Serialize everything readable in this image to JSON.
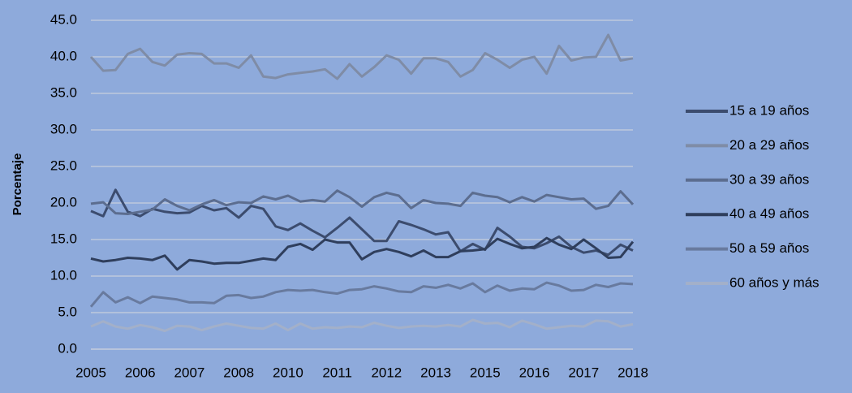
{
  "chart_data": {
    "type": "line",
    "y_label": "Porcentaje",
    "categories": [
      "2005",
      null,
      null,
      null,
      "2006",
      null,
      null,
      null,
      "2007",
      null,
      null,
      null,
      "2008",
      null,
      null,
      null,
      "2010",
      null,
      null,
      null,
      "2011",
      null,
      null,
      null,
      "2012",
      null,
      null,
      null,
      "2013",
      null,
      null,
      null,
      "2015",
      null,
      null,
      null,
      "2016",
      null,
      null,
      null,
      "2017",
      null,
      null,
      null,
      "2018"
    ],
    "ylim": [
      0,
      45
    ],
    "yticks": [
      {
        "value": 0,
        "label": "0.0"
      },
      {
        "value": 5,
        "label": "5.0"
      },
      {
        "value": 10,
        "label": "10.0"
      },
      {
        "value": 15,
        "label": "15.0"
      },
      {
        "value": 20,
        "label": "20.0"
      },
      {
        "value": 25,
        "label": "25.0"
      },
      {
        "value": 30,
        "label": "30.0"
      },
      {
        "value": 35,
        "label": "35.0"
      },
      {
        "value": 40,
        "label": "40.0"
      },
      {
        "value": 45,
        "label": "45.0"
      }
    ],
    "grid": true,
    "legend": "right",
    "series": [
      {
        "name": "15 a 19 años",
        "color": "#3c4c6e",
        "values": [
          18.9,
          18.2,
          21.8,
          18.8,
          18.2,
          19.2,
          18.8,
          18.6,
          18.7,
          19.6,
          19.0,
          19.3,
          18.0,
          19.6,
          19.2,
          16.8,
          16.3,
          17.2,
          16.2,
          15.3,
          16.6,
          18.0,
          16.4,
          14.8,
          14.8,
          17.5,
          17.0,
          16.4,
          15.7,
          16.0,
          13.4,
          14.4,
          13.6,
          16.6,
          15.4,
          14.0,
          13.8,
          14.5,
          15.4,
          14.0,
          13.2,
          13.5,
          12.9,
          14.3,
          13.5
        ]
      },
      {
        "name": "20 a 29 años",
        "color": "#7f8ca6",
        "values": [
          40.0,
          38.1,
          38.2,
          40.4,
          41.1,
          39.3,
          38.8,
          40.3,
          40.5,
          40.4,
          39.1,
          39.1,
          38.5,
          40.2,
          37.3,
          37.1,
          37.6,
          37.8,
          38.0,
          38.3,
          37.0,
          39.0,
          37.3,
          38.6,
          40.2,
          39.6,
          37.7,
          39.8,
          39.8,
          39.3,
          37.3,
          38.2,
          40.5,
          39.6,
          38.5,
          39.6,
          40.0,
          37.7,
          41.5,
          39.5,
          39.9,
          40.0,
          43.0,
          39.5,
          39.8
        ]
      },
      {
        "name": "30 a 39 años",
        "color": "#5c6d8f",
        "values": [
          19.9,
          20.1,
          18.6,
          18.5,
          18.8,
          19.1,
          20.5,
          19.6,
          19.0,
          19.8,
          20.4,
          19.7,
          20.1,
          20.0,
          20.9,
          20.5,
          21.0,
          20.2,
          20.4,
          20.2,
          21.7,
          20.8,
          19.5,
          20.8,
          21.4,
          21.0,
          19.3,
          20.4,
          20.0,
          19.9,
          19.6,
          21.4,
          21.0,
          20.8,
          20.1,
          20.8,
          20.2,
          21.1,
          20.8,
          20.5,
          20.6,
          19.2,
          19.6,
          21.6,
          19.8
        ]
      },
      {
        "name": "40 a 49 años",
        "color": "#2f3e5c",
        "values": [
          12.4,
          12.0,
          12.2,
          12.5,
          12.4,
          12.2,
          12.8,
          10.9,
          12.2,
          12.0,
          11.7,
          11.8,
          11.8,
          12.1,
          12.4,
          12.2,
          14.0,
          14.4,
          13.6,
          15.0,
          14.6,
          14.6,
          12.3,
          13.3,
          13.7,
          13.3,
          12.7,
          13.5,
          12.6,
          12.6,
          13.4,
          13.5,
          13.7,
          15.1,
          14.4,
          13.8,
          14.0,
          15.2,
          14.3,
          13.7,
          15.0,
          13.8,
          12.5,
          12.6,
          14.7
        ]
      },
      {
        "name": "50 a 59 años",
        "color": "#687a9e",
        "values": [
          5.8,
          7.8,
          6.4,
          7.1,
          6.3,
          7.2,
          7.0,
          6.8,
          6.4,
          6.4,
          6.3,
          7.3,
          7.4,
          7.0,
          7.2,
          7.8,
          8.1,
          8.0,
          8.1,
          7.8,
          7.6,
          8.1,
          8.2,
          8.6,
          8.3,
          7.9,
          7.8,
          8.6,
          8.4,
          8.8,
          8.3,
          9.0,
          7.8,
          8.7,
          8.0,
          8.3,
          8.2,
          9.1,
          8.7,
          8.0,
          8.1,
          8.8,
          8.5,
          9.0,
          8.9
        ]
      },
      {
        "name": "60 años y más",
        "color": "#a3b0c9",
        "values": [
          3.1,
          3.8,
          3.1,
          2.8,
          3.3,
          3.0,
          2.5,
          3.2,
          3.1,
          2.6,
          3.1,
          3.5,
          3.2,
          2.9,
          2.8,
          3.5,
          2.6,
          3.5,
          2.8,
          3.0,
          2.9,
          3.1,
          3.0,
          3.6,
          3.2,
          2.9,
          3.1,
          3.2,
          3.1,
          3.3,
          3.1,
          4.0,
          3.5,
          3.6,
          3.0,
          3.9,
          3.4,
          2.8,
          3.0,
          3.2,
          3.1,
          3.9,
          3.8,
          3.1,
          3.4
        ]
      }
    ]
  }
}
